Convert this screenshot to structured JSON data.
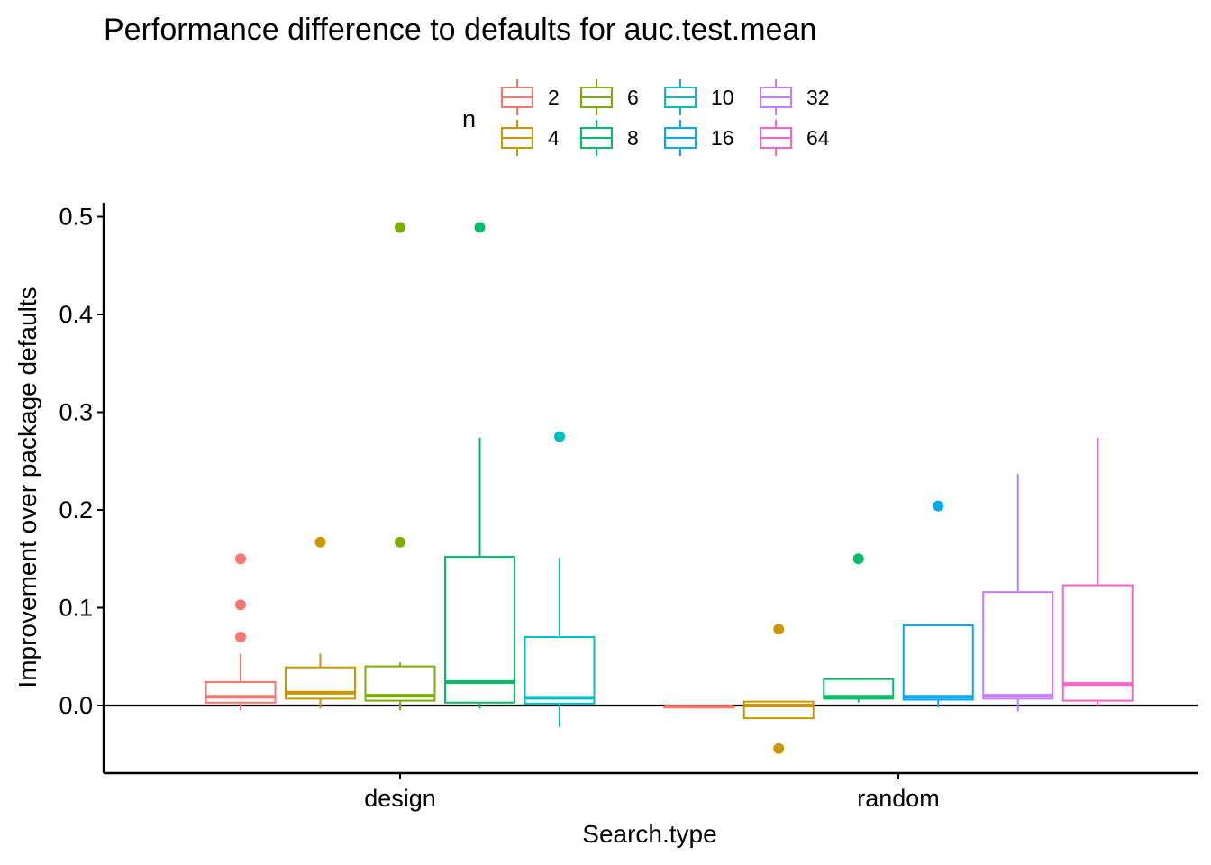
{
  "chart_data": {
    "type": "boxplot",
    "title": "Performance difference to defaults for auc.test.mean",
    "xlabel": "Search.type",
    "ylabel": "Improvement over package defaults",
    "ylim": [
      -0.069,
      0.514
    ],
    "yticks": [
      "0.0",
      "0.1",
      "0.2",
      "0.3",
      "0.4",
      "0.5"
    ],
    "ytick_values": [
      0,
      0.1,
      0.2,
      0.3,
      0.4,
      0.5
    ],
    "reference_line_y": 0,
    "grid": false,
    "legend": {
      "title": "n",
      "placement": "top",
      "entries": [
        {
          "label": "2",
          "color": "#F8766D"
        },
        {
          "label": "4",
          "color": "#CD9600"
        },
        {
          "label": "6",
          "color": "#7CAE00"
        },
        {
          "label": "8",
          "color": "#00BE67"
        },
        {
          "label": "10",
          "color": "#00BFC4"
        },
        {
          "label": "16",
          "color": "#00A9FF"
        },
        {
          "label": "32",
          "color": "#C77CFF"
        },
        {
          "label": "64",
          "color": "#FF61CC"
        }
      ]
    },
    "categories": [
      "design",
      "random"
    ],
    "groups": [
      {
        "category": "design",
        "boxes": [
          {
            "n": "2",
            "color": "#F8766D",
            "lower_whisker": -0.005,
            "q1": 0.003,
            "median": 0.009,
            "q3": 0.024,
            "upper_whisker": 0.053,
            "outliers": [
              0.15,
              0.103,
              0.07
            ]
          },
          {
            "n": "4",
            "color": "#CD9600",
            "lower_whisker": -0.003,
            "q1": 0.007,
            "median": 0.013,
            "q3": 0.039,
            "upper_whisker": 0.053,
            "outliers": [
              0.167
            ]
          },
          {
            "n": "6",
            "color": "#7CAE00",
            "lower_whisker": -0.005,
            "q1": 0.005,
            "median": 0.01,
            "q3": 0.04,
            "upper_whisker": 0.044,
            "outliers": [
              0.489,
              0.167
            ]
          },
          {
            "n": "8",
            "color": "#00BE67",
            "lower_whisker": -0.003,
            "q1": 0.003,
            "median": 0.024,
            "q3": 0.152,
            "upper_whisker": 0.274,
            "outliers": [
              0.489
            ]
          },
          {
            "n": "10",
            "color": "#00BFC4",
            "lower_whisker": -0.022,
            "q1": 0.002,
            "median": 0.008,
            "q3": 0.07,
            "upper_whisker": 0.151,
            "outliers": [
              0.275
            ]
          }
        ]
      },
      {
        "category": "random",
        "boxes": [
          {
            "n": "2",
            "color": "#F8766D",
            "lower_whisker": -0.002,
            "q1": -0.002,
            "median": -0.001,
            "q3": -0.001,
            "upper_whisker": -0.001,
            "outliers": []
          },
          {
            "n": "4",
            "color": "#CD9600",
            "lower_whisker": -0.013,
            "q1": -0.013,
            "median": 0.0,
            "q3": 0.004,
            "upper_whisker": 0.004,
            "outliers": [
              0.078,
              -0.044
            ]
          },
          {
            "n": "8",
            "color": "#00BE67",
            "lower_whisker": 0.003,
            "q1": 0.007,
            "median": 0.009,
            "q3": 0.027,
            "upper_whisker": 0.027,
            "outliers": [
              0.15
            ]
          },
          {
            "n": "16",
            "color": "#00A9FF",
            "lower_whisker": -0.002,
            "q1": 0.006,
            "median": 0.009,
            "q3": 0.082,
            "upper_whisker": 0.082,
            "outliers": [
              0.204
            ]
          },
          {
            "n": "32",
            "color": "#C77CFF",
            "lower_whisker": -0.006,
            "q1": 0.007,
            "median": 0.01,
            "q3": 0.116,
            "upper_whisker": 0.237,
            "outliers": []
          },
          {
            "n": "64",
            "color": "#FF61CC",
            "lower_whisker": -0.001,
            "q1": 0.005,
            "median": 0.022,
            "q3": 0.123,
            "upper_whisker": 0.274,
            "outliers": []
          }
        ]
      }
    ]
  }
}
